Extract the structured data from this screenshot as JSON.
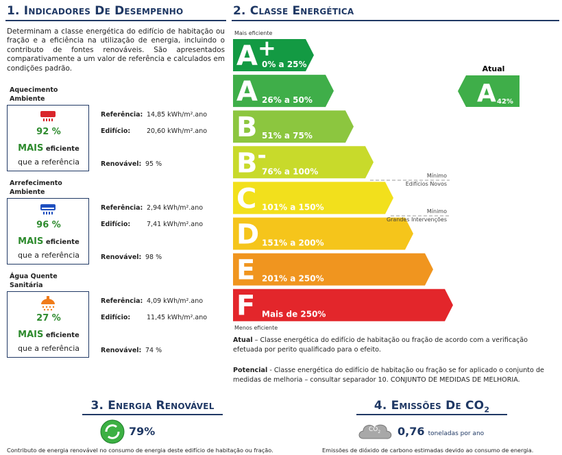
{
  "section1": {
    "title": "1. Indicadores De Desempenho",
    "intro": "Determinam a classe energética do edifício de habitação ou fração e a eficiência na utilização de energia, incluindo o contributo de fontes renováveis. São apresentados comparativamente a um valor de referência e calculados em condições padrão.",
    "indicators": [
      {
        "label": "Aquecimento Ambiente",
        "percent": "92 %",
        "more": "MAIS",
        "efficient": "eficiente",
        "than": "que a referência",
        "ref_label": "Referência:",
        "ref_value": "14,85 kWh/m².ano",
        "bld_label": "Edifício:",
        "bld_value": "20,60 kWh/m².ano",
        "ren_label": "Renovável:",
        "ren_value": "95 %"
      },
      {
        "label": "Arrefecimento Ambiente",
        "percent": "96 %",
        "more": "MAIS",
        "efficient": "eficiente",
        "than": "que a referência",
        "ref_label": "Referência:",
        "ref_value": "2,94 kWh/m².ano",
        "bld_label": "Edifício:",
        "bld_value": "7,41 kWh/m².ano",
        "ren_label": "Renovável:",
        "ren_value": "98 %"
      },
      {
        "label": "Água Quente Sanitária",
        "percent": "27 %",
        "more": "MAIS",
        "efficient": "eficiente",
        "than": "que a referência",
        "ref_label": "Referência:",
        "ref_value": "4,09 kWh/m².ano",
        "bld_label": "Edifício:",
        "bld_value": "11,45 kWh/m².ano",
        "ren_label": "Renovável:",
        "ren_value": "74 %"
      }
    ]
  },
  "section2": {
    "title": "2. Classe Energética",
    "top_label": "Mais eficiente",
    "bottom_label": "Menos eficiente",
    "classes": [
      {
        "letter": "A",
        "sup": "+",
        "range": "0% a 25%",
        "color": "#139a43"
      },
      {
        "letter": "A",
        "range": "26% a 50%",
        "color": "#3fae49"
      },
      {
        "letter": "B",
        "range": "51% a 75%",
        "color": "#8cc63f"
      },
      {
        "letter": "B",
        "sup": "-",
        "range": "76% a 100%",
        "color": "#c8da2b"
      },
      {
        "letter": "C",
        "range": "101% a 150%",
        "color": "#f2e01c"
      },
      {
        "letter": "D",
        "range": "151% a 200%",
        "color": "#f5c51b"
      },
      {
        "letter": "E",
        "range": "201% a 250%",
        "color": "#f0951f"
      },
      {
        "letter": "F",
        "range": "Mais de 250%",
        "color": "#e3262b"
      }
    ],
    "current": {
      "label": "Atual",
      "letter": "A",
      "ratio": "42%",
      "color": "#3fae49"
    },
    "thresholds": [
      {
        "title": "Mínimo",
        "subtitle": "Edifícios Novos"
      },
      {
        "title": "Mínimo",
        "subtitle": "Grandes Intervenções"
      }
    ],
    "notes": [
      {
        "term": "Atual",
        "text": " – Classe energética do edifício de habitação ou fração de acordo com a verificação efetuada por perito qualificado para o efeito."
      },
      {
        "term": "Potencial",
        "text": " - Classe energética do edifício de habitação ou fração se for aplicado o conjunto de medidas de melhoria – consultar separador 10. CONJUNTO DE MEDIDAS DE MELHORIA."
      }
    ]
  },
  "section3": {
    "title": "3. Energia Renovável",
    "value": "79%",
    "caption": "Contributo de energia renovável no consumo de energia deste edifício de habitação ou fração."
  },
  "section4": {
    "title": "4. Emissões De CO",
    "title_sub": "2",
    "icon": "CO",
    "icon_sub": "2",
    "value": "0,76",
    "unit": "toneladas por ano",
    "caption": "Emissões de dióxido de carbono estimadas devido ao consumo de energia."
  }
}
